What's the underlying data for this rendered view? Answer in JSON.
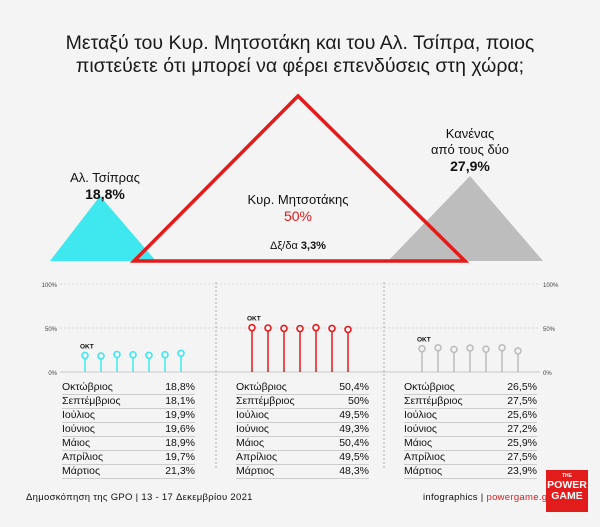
{
  "title_lines": [
    "Μεταξύ του Κυρ. Μητσοτάκη και του Αλ. Τσίπρα, ποιος",
    "πιστεύετε ότι μπορεί να φέρει επενδύσεις στη χώρα;"
  ],
  "colors": {
    "tsipras": "#3fe8ee",
    "mitsotakis": "#e21b1b",
    "neither": "#bdbdbd"
  },
  "summary": {
    "tsipras": {
      "label": "Αλ. Τσίπρας",
      "value": "18,8%",
      "pct": 18.8
    },
    "mitsotakis": {
      "label": "Κυρ. Μητσοτάκης",
      "value": "50%",
      "pct": 50
    },
    "neither": {
      "label_line1": "Κανένας",
      "label_line2": "από τους δύο",
      "value": "27,9%",
      "pct": 27.9
    },
    "dk": {
      "label": "Δξ/δα",
      "value": "3,3%"
    }
  },
  "chart_data": {
    "type": "lollipop",
    "y_ticks": [
      "100%",
      "50%",
      "0%"
    ],
    "ylim": [
      0,
      100
    ],
    "start_marker": "ΟΚΤ",
    "months": [
      "Οκτώβριος",
      "Σεπτέμβριος",
      "Ιούλιος",
      "Ιούνιος",
      "Μάιος",
      "Απρίλιος",
      "Μάρτιος"
    ],
    "panels": [
      {
        "key": "tsipras",
        "values": [
          18.8,
          18.1,
          19.9,
          19.6,
          18.9,
          19.7,
          21.3
        ],
        "labels": [
          "18,8%",
          "18,1%",
          "19,9%",
          "19,6%",
          "18,9%",
          "19,7%",
          "21,3%"
        ]
      },
      {
        "key": "mitsotakis",
        "values": [
          50.4,
          50,
          49.5,
          49.3,
          50.4,
          49.5,
          48.3
        ],
        "labels": [
          "50,4%",
          "50%",
          "49,5%",
          "49,3%",
          "50,4%",
          "49,5%",
          "48,3%"
        ]
      },
      {
        "key": "neither",
        "values": [
          26.5,
          27.5,
          25.6,
          27.2,
          25.9,
          27.5,
          23.9
        ],
        "labels": [
          "26,5%",
          "27,5%",
          "25,6%",
          "27,2%",
          "25,9%",
          "27,5%",
          "23,9%"
        ]
      }
    ]
  },
  "footer": {
    "source": "Δημοσκόπηση της GPO | 13 - 17 Δεκεμβρίου 2021",
    "credit_plain": "infographics | ",
    "credit_site": "powergame.gr"
  },
  "logo": {
    "line1": "THE",
    "line2": "POWER",
    "line3": "GAME"
  }
}
